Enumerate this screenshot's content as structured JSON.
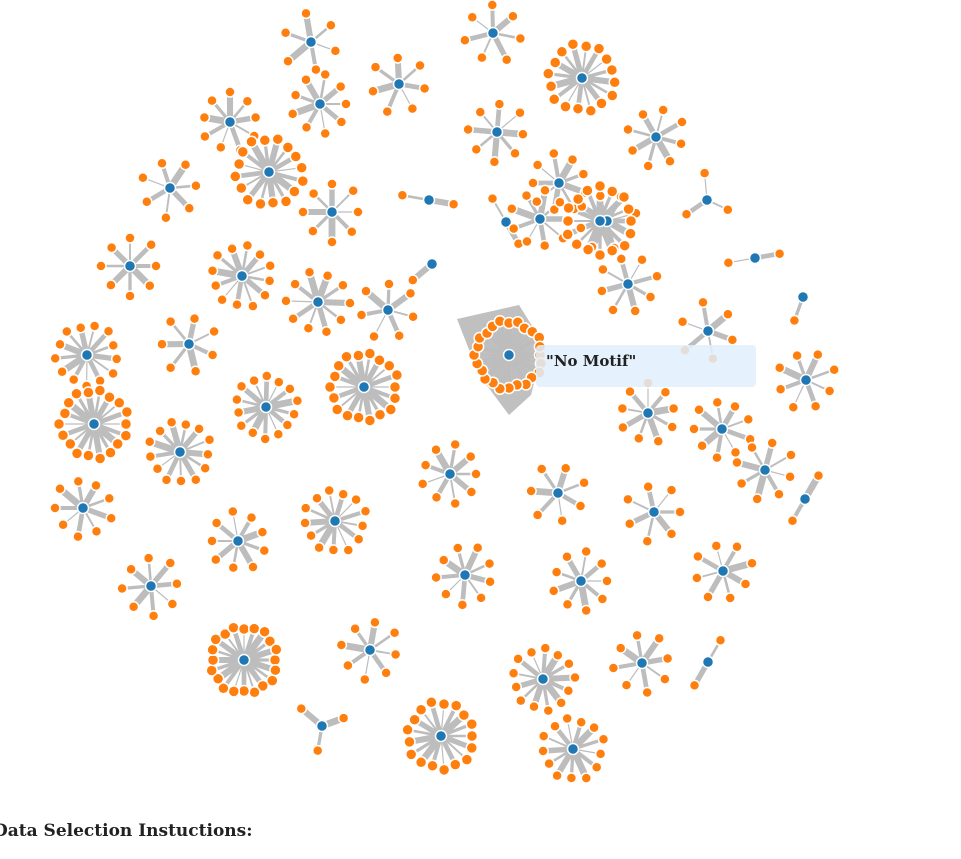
{
  "tooltip": {
    "text": "\"No Motif\""
  },
  "instructions": {
    "heading": "Data Selection Instuctions:"
  },
  "colors": {
    "hub": "#1f77b4",
    "leaf": "#ff7f0e",
    "link": "#bdbdbd",
    "highlight": "#8c8c8c",
    "tooltip_bg": "#e0eefc"
  },
  "graph": {
    "type": "force-directed network",
    "node_kinds": [
      "hub",
      "leaf"
    ],
    "cluster_leaf_counts": [
      6,
      7,
      7,
      16,
      9,
      8,
      9,
      8,
      7,
      8,
      2,
      16,
      9,
      3,
      8,
      2,
      8,
      12,
      9,
      1,
      2,
      8,
      7,
      10,
      6,
      7,
      13,
      18,
      13,
      14,
      1,
      8,
      9,
      9,
      18,
      9,
      8,
      9,
      7,
      7,
      13,
      9,
      9,
      2,
      2,
      9,
      8,
      8,
      20,
      8,
      3,
      8,
      13,
      17,
      13,
      9,
      16,
      10,
      3,
      1,
      6,
      9,
      14,
      3,
      2,
      1,
      16
    ],
    "highlighted_cluster_leaf_count": 24
  }
}
